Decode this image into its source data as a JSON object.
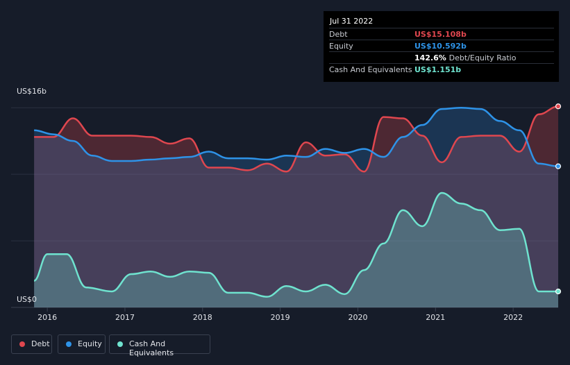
{
  "tooltip": {
    "date": "Jul 31 2022",
    "debt_label": "Debt",
    "debt_value": "US$15.108b",
    "equity_label": "Equity",
    "equity_value": "US$10.592b",
    "ratio_value": "142.6%",
    "ratio_label": "Debt/Equity Ratio",
    "cash_label": "Cash And Equivalents",
    "cash_value": "US$1.151b"
  },
  "legend": [
    {
      "label": "Debt",
      "color": "#e0474f"
    },
    {
      "label": "Equity",
      "color": "#2e93e8"
    },
    {
      "label": "Cash And Equivalents",
      "color": "#6fe3cf"
    }
  ],
  "chart_data": {
    "type": "area",
    "ylabel_top": "US$16b",
    "ylabel_bottom": "US$0",
    "ylim": [
      0,
      16
    ],
    "y_grid": [
      0,
      5,
      10,
      15
    ],
    "x_ticks": [
      "2016",
      "2017",
      "2018",
      "2019",
      "2020",
      "2021",
      "2022"
    ],
    "x_range": [
      2015.82,
      2022.58
    ],
    "series": [
      {
        "name": "Debt",
        "color": "#e0474f",
        "x": [
          2015.83,
          2016.08,
          2016.33,
          2016.58,
          2016.83,
          2017.08,
          2017.33,
          2017.58,
          2017.83,
          2018.08,
          2018.33,
          2018.58,
          2018.83,
          2019.08,
          2019.33,
          2019.58,
          2019.83,
          2020.08,
          2020.33,
          2020.58,
          2020.83,
          2021.08,
          2021.33,
          2021.58,
          2021.83,
          2022.08,
          2022.33,
          2022.58
        ],
        "y": [
          12.8,
          12.8,
          14.2,
          12.9,
          12.9,
          12.9,
          12.8,
          12.3,
          12.7,
          10.5,
          10.5,
          10.3,
          10.8,
          10.2,
          12.4,
          11.4,
          11.5,
          10.2,
          14.3,
          14.2,
          12.9,
          10.9,
          12.8,
          12.9,
          12.9,
          11.7,
          14.5,
          15.1
        ]
      },
      {
        "name": "Equity",
        "color": "#2e93e8",
        "x": [
          2015.83,
          2016.08,
          2016.33,
          2016.58,
          2016.83,
          2017.08,
          2017.33,
          2017.58,
          2017.83,
          2018.08,
          2018.33,
          2018.58,
          2018.83,
          2019.08,
          2019.33,
          2019.58,
          2019.83,
          2020.08,
          2020.33,
          2020.58,
          2020.83,
          2021.08,
          2021.33,
          2021.58,
          2021.83,
          2022.08,
          2022.33,
          2022.58
        ],
        "y": [
          13.3,
          13.0,
          12.5,
          11.4,
          11.0,
          11.0,
          11.1,
          11.2,
          11.3,
          11.7,
          11.2,
          11.2,
          11.1,
          11.4,
          11.3,
          11.9,
          11.6,
          11.9,
          11.3,
          12.8,
          13.7,
          14.9,
          15.0,
          14.9,
          14.0,
          13.3,
          10.8,
          10.6
        ]
      },
      {
        "name": "Cash And Equivalents",
        "color": "#6fe3cf",
        "x": [
          2015.83,
          2016.0,
          2016.25,
          2016.5,
          2016.83,
          2017.08,
          2017.33,
          2017.58,
          2017.83,
          2018.08,
          2018.33,
          2018.58,
          2018.83,
          2019.08,
          2019.33,
          2019.58,
          2019.83,
          2020.08,
          2020.33,
          2020.58,
          2020.83,
          2021.08,
          2021.33,
          2021.58,
          2021.83,
          2022.08,
          2022.33,
          2022.58
        ],
        "y": [
          2.0,
          4.0,
          4.0,
          1.5,
          1.2,
          2.5,
          2.7,
          2.3,
          2.7,
          2.6,
          1.1,
          1.1,
          0.8,
          1.6,
          1.2,
          1.7,
          1.0,
          2.8,
          4.8,
          7.3,
          6.1,
          8.6,
          7.8,
          7.3,
          5.8,
          5.9,
          1.2,
          1.2
        ]
      }
    ]
  }
}
